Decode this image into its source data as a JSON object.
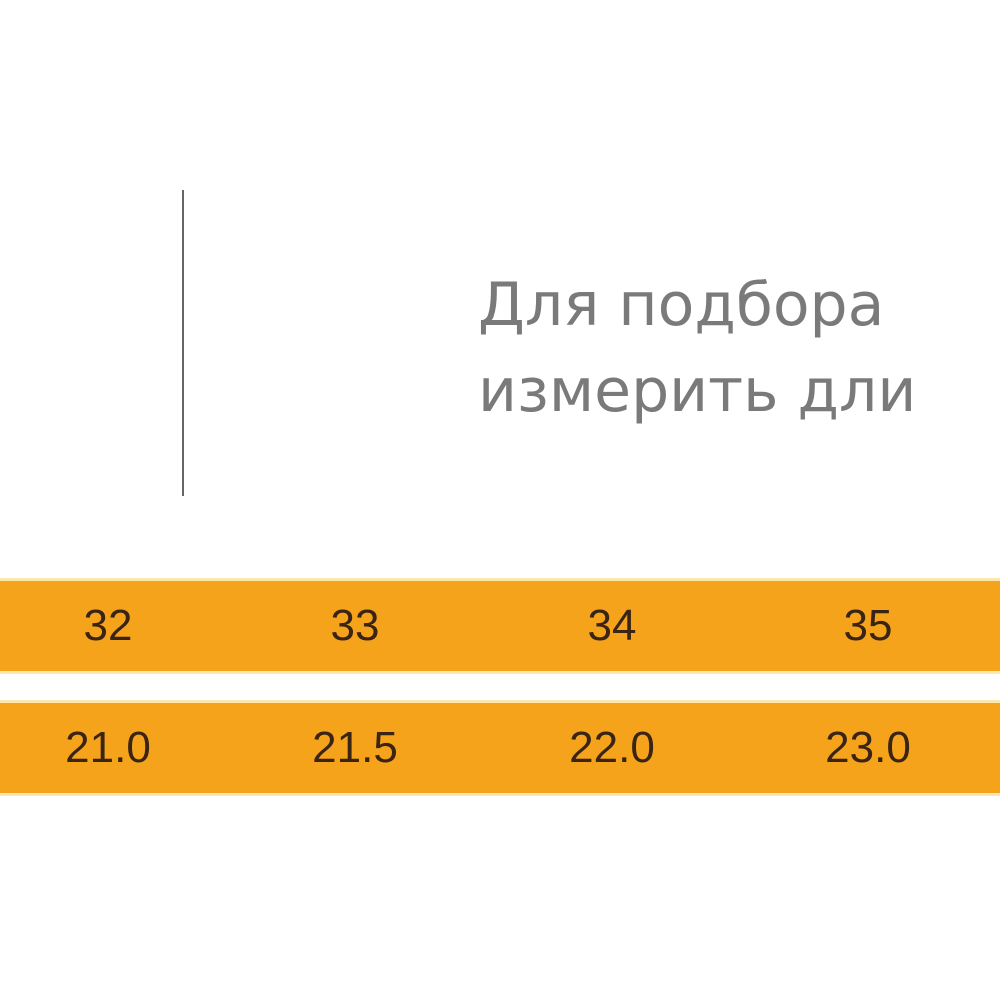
{
  "intro": {
    "lines": [
      "Для подбора",
      "измерить дли"
    ]
  },
  "table": {
    "rows": [
      [
        "32",
        "33",
        "34",
        "35"
      ],
      [
        "21.0",
        "21.5",
        "22.0",
        "23.0"
      ]
    ]
  }
}
